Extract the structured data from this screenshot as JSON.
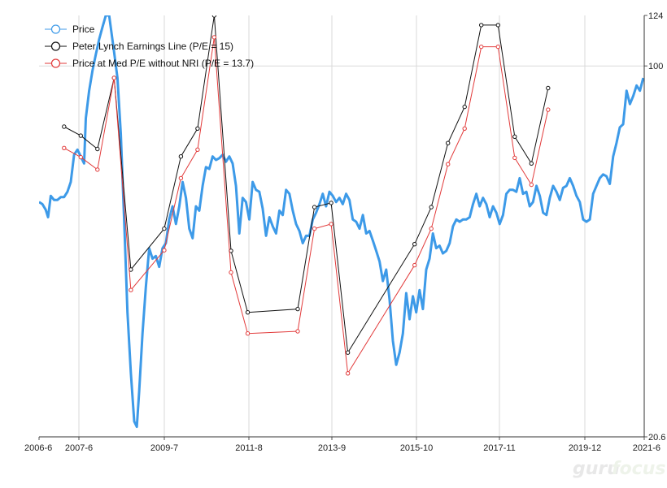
{
  "chart_data": {
    "type": "line",
    "watermark": "gurufocus",
    "x_ticks": [
      "2006-6",
      "2007-6",
      "2009-7",
      "2011-8",
      "2013-9",
      "2015-10",
      "2017-11",
      "2019-12",
      "2021-6"
    ],
    "y_ticks": [
      "124",
      "100",
      "20.6"
    ],
    "y_scale": "log",
    "ylim": [
      20.6,
      124
    ],
    "grid": true,
    "legend_position": "top-left",
    "series": [
      {
        "name": "Price",
        "color": "#3d9ae8",
        "marker": "none",
        "points": [
          [
            2006.45,
            56.0
          ],
          [
            2006.55,
            55.5
          ],
          [
            2006.65,
            54.2
          ],
          [
            2006.72,
            52.5
          ],
          [
            2006.8,
            57.5
          ],
          [
            2006.9,
            56.5
          ],
          [
            2007.0,
            56.5
          ],
          [
            2007.1,
            57.2
          ],
          [
            2007.2,
            57.2
          ],
          [
            2007.3,
            58.5
          ],
          [
            2007.4,
            61.0
          ],
          [
            2007.5,
            68.5
          ],
          [
            2007.6,
            70.0
          ],
          [
            2007.7,
            68.0
          ],
          [
            2007.8,
            66.0
          ],
          [
            2007.85,
            80.0
          ],
          [
            2007.95,
            90.0
          ],
          [
            2008.05,
            98.0
          ],
          [
            2008.15,
            105.0
          ],
          [
            2008.25,
            112.0
          ],
          [
            2008.35,
            118.0
          ],
          [
            2008.45,
            124.0
          ],
          [
            2008.55,
            124.0
          ],
          [
            2008.7,
            106.0
          ],
          [
            2008.8,
            95.0
          ],
          [
            2008.9,
            75.0
          ],
          [
            2009.0,
            52.0
          ],
          [
            2009.1,
            35.0
          ],
          [
            2009.2,
            27.0
          ],
          [
            2009.3,
            22.0
          ],
          [
            2009.38,
            21.5
          ],
          [
            2009.45,
            25.0
          ],
          [
            2009.55,
            32.0
          ],
          [
            2009.65,
            39.0
          ],
          [
            2009.75,
            46.0
          ],
          [
            2009.85,
            44.0
          ],
          [
            2009.95,
            44.5
          ],
          [
            2010.05,
            42.5
          ],
          [
            2010.15,
            46.0
          ],
          [
            2010.25,
            47.0
          ],
          [
            2010.35,
            52.0
          ],
          [
            2010.45,
            55.0
          ],
          [
            2010.55,
            51.0
          ],
          [
            2010.65,
            55.0
          ],
          [
            2010.75,
            61.0
          ],
          [
            2010.85,
            57.0
          ],
          [
            2010.95,
            50.0
          ],
          [
            2011.05,
            48.0
          ],
          [
            2011.15,
            55.0
          ],
          [
            2011.25,
            54.0
          ],
          [
            2011.35,
            60.0
          ],
          [
            2011.45,
            65.0
          ],
          [
            2011.55,
            64.5
          ],
          [
            2011.65,
            68.0
          ],
          [
            2011.75,
            67.0
          ],
          [
            2011.85,
            67.5
          ],
          [
            2011.95,
            68.5
          ],
          [
            2012.05,
            66.5
          ],
          [
            2012.15,
            68.0
          ],
          [
            2012.25,
            66.0
          ],
          [
            2012.35,
            60.0
          ],
          [
            2012.45,
            49.0
          ],
          [
            2012.55,
            57.0
          ],
          [
            2012.65,
            56.0
          ],
          [
            2012.75,
            52.0
          ],
          [
            2012.85,
            61.0
          ],
          [
            2012.95,
            59.0
          ],
          [
            2013.05,
            58.5
          ],
          [
            2013.15,
            54.5
          ],
          [
            2013.25,
            48.5
          ],
          [
            2013.35,
            52.5
          ],
          [
            2013.45,
            50.5
          ],
          [
            2013.55,
            49.0
          ],
          [
            2013.65,
            54.0
          ],
          [
            2013.75,
            53.0
          ],
          [
            2013.85,
            59.0
          ],
          [
            2013.95,
            58.0
          ],
          [
            2014.05,
            54.0
          ],
          [
            2014.15,
            51.0
          ],
          [
            2014.25,
            49.5
          ],
          [
            2014.35,
            47.0
          ],
          [
            2014.45,
            48.5
          ],
          [
            2014.55,
            48.5
          ],
          [
            2014.65,
            52.0
          ],
          [
            2014.75,
            53.5
          ],
          [
            2014.85,
            55.5
          ],
          [
            2014.95,
            58.0
          ],
          [
            2015.05,
            55.0
          ],
          [
            2015.15,
            58.5
          ],
          [
            2015.25,
            57.5
          ],
          [
            2015.35,
            56.0
          ],
          [
            2015.45,
            57.0
          ],
          [
            2015.55,
            55.5
          ],
          [
            2015.65,
            58.0
          ],
          [
            2015.75,
            56.5
          ],
          [
            2015.85,
            52.0
          ],
          [
            2015.95,
            51.5
          ],
          [
            2016.05,
            50.0
          ],
          [
            2016.15,
            53.0
          ],
          [
            2016.25,
            49.0
          ],
          [
            2016.35,
            49.5
          ],
          [
            2016.45,
            47.5
          ],
          [
            2016.55,
            45.5
          ],
          [
            2016.65,
            43.5
          ],
          [
            2016.75,
            40.0
          ],
          [
            2016.85,
            42.0
          ],
          [
            2016.95,
            37.0
          ],
          [
            2017.05,
            31.0
          ],
          [
            2017.15,
            28.0
          ],
          [
            2017.25,
            29.5
          ],
          [
            2017.35,
            32.0
          ],
          [
            2017.45,
            38.0
          ],
          [
            2017.55,
            34.0
          ],
          [
            2017.65,
            37.5
          ],
          [
            2017.75,
            35.0
          ],
          [
            2017.85,
            38.5
          ],
          [
            2017.95,
            35.5
          ],
          [
            2018.05,
            42.0
          ],
          [
            2018.15,
            44.0
          ],
          [
            2018.25,
            49.0
          ],
          [
            2018.35,
            46.0
          ],
          [
            2018.45,
            46.5
          ],
          [
            2018.55,
            45.0
          ],
          [
            2018.65,
            45.5
          ],
          [
            2018.75,
            47.0
          ],
          [
            2018.85,
            50.5
          ],
          [
            2018.95,
            52.0
          ],
          [
            2019.05,
            51.5
          ],
          [
            2019.15,
            52.0
          ],
          [
            2019.25,
            52.0
          ],
          [
            2019.35,
            52.5
          ],
          [
            2019.45,
            55.5
          ],
          [
            2019.55,
            58.0
          ],
          [
            2019.65,
            55.0
          ],
          [
            2019.75,
            57.0
          ],
          [
            2019.85,
            55.5
          ],
          [
            2019.95,
            52.5
          ],
          [
            2020.05,
            55.0
          ],
          [
            2020.15,
            53.5
          ],
          [
            2020.25,
            51.0
          ],
          [
            2020.35,
            53.0
          ],
          [
            2020.45,
            58.0
          ],
          [
            2020.55,
            59.0
          ],
          [
            2020.65,
            59.0
          ],
          [
            2020.75,
            58.5
          ],
          [
            2020.85,
            62.0
          ],
          [
            2020.95,
            58.0
          ],
          [
            2021.05,
            58.5
          ],
          [
            2021.15,
            55.0
          ],
          [
            2021.25,
            56.0
          ],
          [
            2021.35,
            60.0
          ],
          [
            2021.45,
            57.5
          ],
          [
            2021.55,
            53.5
          ],
          [
            2021.65,
            53.0
          ],
          [
            2021.75,
            57.0
          ],
          [
            2021.85,
            60.0
          ],
          [
            2021.95,
            58.5
          ],
          [
            2022.05,
            56.5
          ],
          [
            2022.15,
            59.5
          ],
          [
            2022.25,
            60.0
          ],
          [
            2022.35,
            62.0
          ],
          [
            2022.45,
            60.0
          ],
          [
            2022.55,
            57.5
          ],
          [
            2022.65,
            56.0
          ],
          [
            2022.75,
            52.0
          ],
          [
            2022.85,
            51.5
          ],
          [
            2022.95,
            52.0
          ],
          [
            2023.05,
            58.0
          ],
          [
            2023.15,
            60.0
          ],
          [
            2023.25,
            62.0
          ],
          [
            2023.35,
            63.0
          ],
          [
            2023.45,
            62.5
          ],
          [
            2023.55,
            60.5
          ],
          [
            2023.65,
            68.0
          ],
          [
            2023.75,
            72.0
          ],
          [
            2023.85,
            77.0
          ],
          [
            2023.95,
            78.0
          ],
          [
            2024.05,
            90.0
          ],
          [
            2024.15,
            85.0
          ],
          [
            2024.25,
            88.0
          ],
          [
            2024.35,
            92.0
          ],
          [
            2024.45,
            90.0
          ],
          [
            2024.55,
            95.0
          ]
        ]
      },
      {
        "name": "Peter Lynch Earnings Line (P/E = 15)",
        "color": "#111111",
        "marker": "circle",
        "points": [
          [
            2007.2,
            77.2
          ],
          [
            2007.7,
            74.3
          ],
          [
            2008.2,
            70.2
          ],
          [
            2008.7,
            95.0
          ],
          [
            2009.2,
            42.0
          ],
          [
            2010.2,
            50.0
          ],
          [
            2010.7,
            68.0
          ],
          [
            2011.2,
            76.6
          ],
          [
            2011.7,
            124.0
          ],
          [
            2012.2,
            45.5
          ],
          [
            2012.7,
            35.0
          ],
          [
            2014.2,
            35.5
          ],
          [
            2014.7,
            54.8
          ],
          [
            2015.2,
            55.8
          ],
          [
            2015.7,
            29.5
          ],
          [
            2017.7,
            46.8
          ],
          [
            2018.2,
            54.8
          ],
          [
            2018.7,
            72.0
          ],
          [
            2019.2,
            84.0
          ],
          [
            2019.7,
            119.0
          ],
          [
            2020.2,
            119.0
          ],
          [
            2020.7,
            74.0
          ],
          [
            2021.2,
            66.0
          ],
          [
            2021.7,
            91.0
          ]
        ]
      },
      {
        "name": "Price at Med P/E without NRI (P/E = 13.7)",
        "color": "#e23a3a",
        "marker": "circle",
        "points": [
          [
            2007.2,
            70.5
          ],
          [
            2007.7,
            67.8
          ],
          [
            2008.2,
            64.3
          ],
          [
            2008.7,
            95.0
          ],
          [
            2009.2,
            38.5
          ],
          [
            2010.2,
            45.6
          ],
          [
            2010.7,
            62.0
          ],
          [
            2011.2,
            70.0
          ],
          [
            2011.7,
            113.0
          ],
          [
            2012.2,
            41.5
          ],
          [
            2012.7,
            32.0
          ],
          [
            2014.2,
            32.3
          ],
          [
            2014.7,
            50.0
          ],
          [
            2015.2,
            51.0
          ],
          [
            2015.7,
            27.0
          ],
          [
            2017.7,
            42.8
          ],
          [
            2018.2,
            50.0
          ],
          [
            2018.7,
            65.8
          ],
          [
            2019.2,
            76.6
          ],
          [
            2019.7,
            108.5
          ],
          [
            2020.2,
            108.5
          ],
          [
            2020.7,
            67.6
          ],
          [
            2021.2,
            60.3
          ],
          [
            2021.7,
            83.0
          ]
        ]
      }
    ]
  }
}
